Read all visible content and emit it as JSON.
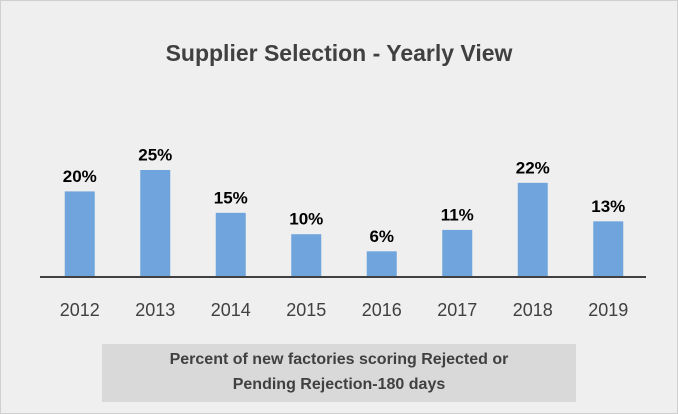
{
  "chart_data": {
    "type": "bar",
    "title": "Supplier Selection - Yearly View",
    "categories": [
      "2012",
      "2013",
      "2014",
      "2015",
      "2016",
      "2017",
      "2018",
      "2019"
    ],
    "values": [
      20,
      25,
      15,
      10,
      6,
      11,
      22,
      13
    ],
    "value_labels": [
      "20%",
      "25%",
      "15%",
      "10%",
      "6%",
      "11%",
      "22%",
      "13%"
    ],
    "color": "#6fa5dc",
    "x_label": [
      "Percent of new factories scoring Rejected or",
      "Pending Rejection-180 days"
    ]
  }
}
